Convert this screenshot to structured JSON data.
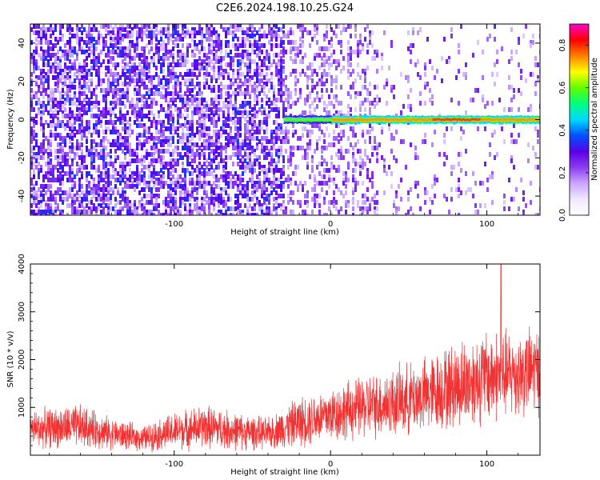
{
  "title": "C2E6.2024.198.10.25.G24",
  "chart_data": [
    {
      "type": "heatmap",
      "xlabel": "Height of straight line (km)",
      "ylabel": "Frequency (Hz)",
      "xlim": [
        -192,
        134
      ],
      "ylim": [
        -50,
        50
      ],
      "x_ticks": [
        -100,
        0,
        100
      ],
      "x_tick_labels": [
        "-100",
        "0",
        "100"
      ],
      "y_ticks": [
        -40,
        -20,
        0,
        20,
        40
      ],
      "y_tick_labels": [
        "-40",
        "-20",
        "0",
        "20",
        "40"
      ],
      "colorbar": {
        "label": "Normalized spectral amplitude",
        "range": [
          0,
          0.9
        ],
        "ticks": [
          0,
          0.2,
          0.4,
          0.6,
          0.8
        ],
        "tick_labels": [
          "0.0",
          "0.2",
          "0.4",
          "0.6",
          "0.8"
        ]
      },
      "ridge": {
        "frequency": 0,
        "start_height": -30,
        "end_height": 134,
        "peak_segment": [
          65,
          95
        ]
      },
      "grid": false
    },
    {
      "type": "line",
      "xlabel": "Height of straight line (km)",
      "ylabel": "SNR (10 * v/v)",
      "xlim": [
        -192,
        134
      ],
      "ylim": [
        0,
        4000
      ],
      "x_ticks": [
        -100,
        0,
        100
      ],
      "x_tick_labels": [
        "-100",
        "0",
        "100"
      ],
      "y_ticks": [
        1000,
        2000,
        3000,
        4000
      ],
      "y_tick_labels": [
        "1000",
        "2000",
        "3000",
        "4000"
      ],
      "series_color": "#f03232",
      "envelope": [
        {
          "x": -192,
          "mean": 550,
          "spread": 300
        },
        {
          "x": -160,
          "mean": 600,
          "spread": 350
        },
        {
          "x": -140,
          "mean": 450,
          "spread": 250
        },
        {
          "x": -120,
          "mean": 350,
          "spread": 200
        },
        {
          "x": -100,
          "mean": 500,
          "spread": 300
        },
        {
          "x": -80,
          "mean": 600,
          "spread": 350
        },
        {
          "x": -60,
          "mean": 500,
          "spread": 300
        },
        {
          "x": -40,
          "mean": 450,
          "spread": 250
        },
        {
          "x": -20,
          "mean": 700,
          "spread": 400
        },
        {
          "x": 0,
          "mean": 850,
          "spread": 450
        },
        {
          "x": 20,
          "mean": 1000,
          "spread": 500
        },
        {
          "x": 40,
          "mean": 1100,
          "spread": 550
        },
        {
          "x": 60,
          "mean": 1250,
          "spread": 600
        },
        {
          "x": 80,
          "mean": 1450,
          "spread": 700
        },
        {
          "x": 100,
          "mean": 1650,
          "spread": 750
        },
        {
          "x": 120,
          "mean": 1700,
          "spread": 700
        },
        {
          "x": 134,
          "mean": 1800,
          "spread": 700
        }
      ],
      "peak": {
        "x": 109,
        "y": 4000
      }
    }
  ],
  "colors": {
    "background": "#ffffff",
    "low": "#ffffff",
    "scale": [
      "#ffffff",
      "#f0e8ff",
      "#c8a8ff",
      "#8c3cf0",
      "#5a00e6",
      "#0050ff",
      "#00d8ff",
      "#00ff80",
      "#60ff00",
      "#ffff00",
      "#ff8000",
      "#ff0000",
      "#ff00c8"
    ]
  }
}
